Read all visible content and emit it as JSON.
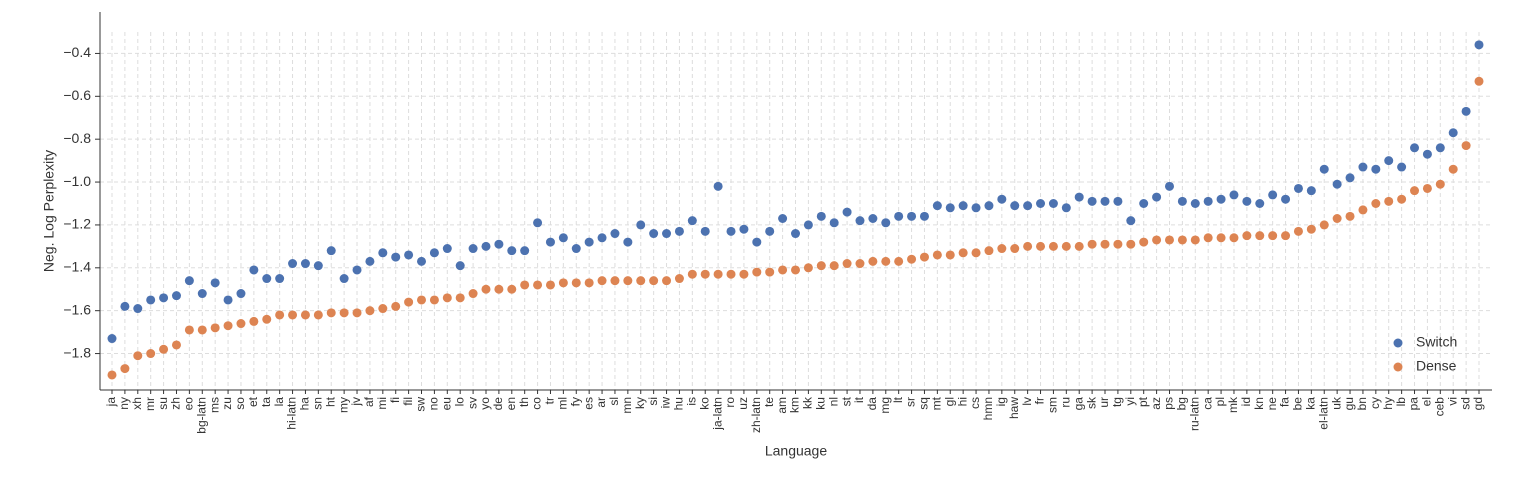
{
  "chart_data": {
    "type": "scatter",
    "x_label": "Language",
    "y_label": "Neg. Log Perplexity",
    "categories": [
      "ja",
      "ny",
      "xh",
      "mr",
      "su",
      "zh",
      "eo",
      "bg-latn",
      "ms",
      "zu",
      "so",
      "et",
      "ta",
      "la",
      "hi-latn",
      "ha",
      "sn",
      "ht",
      "my",
      "jv",
      "af",
      "mi",
      "fi",
      "fil",
      "sw",
      "no",
      "eu",
      "lo",
      "sv",
      "yo",
      "de",
      "en",
      "th",
      "co",
      "tr",
      "ml",
      "fy",
      "es",
      "ar",
      "sl",
      "mn",
      "ky",
      "si",
      "iw",
      "hu",
      "is",
      "ko",
      "ja-latn",
      "ro",
      "uz",
      "zh-latn",
      "te",
      "am",
      "km",
      "kk",
      "ku",
      "nl",
      "st",
      "it",
      "da",
      "mg",
      "lt",
      "sr",
      "sq",
      "mt",
      "gl",
      "hi",
      "cs",
      "hmn",
      "ig",
      "haw",
      "lv",
      "fr",
      "sm",
      "ru",
      "ga",
      "sk",
      "ur",
      "tg",
      "yi",
      "pt",
      "az",
      "ps",
      "bg",
      "ru-latn",
      "ca",
      "pl",
      "mk",
      "id",
      "kn",
      "ne",
      "fa",
      "be",
      "ka",
      "el-latn",
      "uk",
      "gu",
      "bn",
      "cy",
      "hy",
      "lb",
      "pa",
      "el",
      "ceb",
      "vi",
      "sd",
      "gd"
    ],
    "series": [
      {
        "name": "Switch",
        "color": "#4c72b0",
        "values": [
          -1.73,
          -1.58,
          -1.59,
          -1.55,
          -1.54,
          -1.53,
          -1.46,
          -1.52,
          -1.47,
          -1.55,
          -1.52,
          -1.41,
          -1.45,
          -1.45,
          -1.38,
          -1.38,
          -1.39,
          -1.32,
          -1.45,
          -1.41,
          -1.37,
          -1.33,
          -1.35,
          -1.34,
          -1.37,
          -1.33,
          -1.31,
          -1.39,
          -1.31,
          -1.3,
          -1.29,
          -1.32,
          -1.32,
          -1.19,
          -1.28,
          -1.26,
          -1.31,
          -1.28,
          -1.26,
          -1.24,
          -1.28,
          -1.2,
          -1.24,
          -1.24,
          -1.23,
          -1.18,
          -1.23,
          -1.02,
          -1.23,
          -1.22,
          -1.28,
          -1.23,
          -1.17,
          -1.24,
          -1.2,
          -1.16,
          -1.19,
          -1.14,
          -1.18,
          -1.17,
          -1.19,
          -1.16,
          -1.16,
          -1.16,
          -1.11,
          -1.12,
          -1.11,
          -1.12,
          -1.11,
          -1.08,
          -1.11,
          -1.11,
          -1.1,
          -1.1,
          -1.12,
          -1.07,
          -1.09,
          -1.09,
          -1.09,
          -1.18,
          -1.1,
          -1.07,
          -1.02,
          -1.09,
          -1.1,
          -1.09,
          -1.08,
          -1.06,
          -1.09,
          -1.1,
          -1.06,
          -1.08,
          -1.03,
          -1.04,
          -0.94,
          -1.01,
          -0.98,
          -0.93,
          -0.94,
          -0.9,
          -0.93,
          -0.84,
          -0.87,
          -0.84,
          -0.77,
          -0.67,
          -0.36
        ]
      },
      {
        "name": "Dense",
        "color": "#dd8452",
        "values": [
          -1.9,
          -1.87,
          -1.81,
          -1.8,
          -1.78,
          -1.76,
          -1.69,
          -1.69,
          -1.68,
          -1.67,
          -1.66,
          -1.65,
          -1.64,
          -1.62,
          -1.62,
          -1.62,
          -1.62,
          -1.61,
          -1.61,
          -1.61,
          -1.6,
          -1.59,
          -1.58,
          -1.56,
          -1.55,
          -1.55,
          -1.54,
          -1.54,
          -1.52,
          -1.5,
          -1.5,
          -1.5,
          -1.48,
          -1.48,
          -1.48,
          -1.47,
          -1.47,
          -1.47,
          -1.46,
          -1.46,
          -1.46,
          -1.46,
          -1.46,
          -1.46,
          -1.45,
          -1.43,
          -1.43,
          -1.43,
          -1.43,
          -1.43,
          -1.42,
          -1.42,
          -1.41,
          -1.41,
          -1.4,
          -1.39,
          -1.39,
          -1.38,
          -1.38,
          -1.37,
          -1.37,
          -1.37,
          -1.36,
          -1.35,
          -1.34,
          -1.34,
          -1.33,
          -1.33,
          -1.32,
          -1.31,
          -1.31,
          -1.3,
          -1.3,
          -1.3,
          -1.3,
          -1.3,
          -1.29,
          -1.29,
          -1.29,
          -1.29,
          -1.28,
          -1.27,
          -1.27,
          -1.27,
          -1.27,
          -1.26,
          -1.26,
          -1.26,
          -1.25,
          -1.25,
          -1.25,
          -1.25,
          -1.23,
          -1.22,
          -1.2,
          -1.17,
          -1.16,
          -1.13,
          -1.1,
          -1.09,
          -1.08,
          -1.04,
          -1.03,
          -1.01,
          -0.94,
          -0.83,
          -0.53
        ]
      }
    ],
    "ylim": [
      -1.97,
      -0.3
    ],
    "yticks": [
      {
        "value": -1.8,
        "label": "−1.8"
      },
      {
        "value": -1.6,
        "label": "−1.6"
      },
      {
        "value": -1.4,
        "label": "−1.4"
      },
      {
        "value": -1.2,
        "label": "−1.2"
      },
      {
        "value": -1.0,
        "label": "−1.0"
      },
      {
        "value": -0.8,
        "label": "−0.8"
      },
      {
        "value": -0.6,
        "label": "−0.6"
      },
      {
        "value": -0.4,
        "label": "−0.4"
      }
    ],
    "grid": true,
    "legend": "lower right"
  }
}
